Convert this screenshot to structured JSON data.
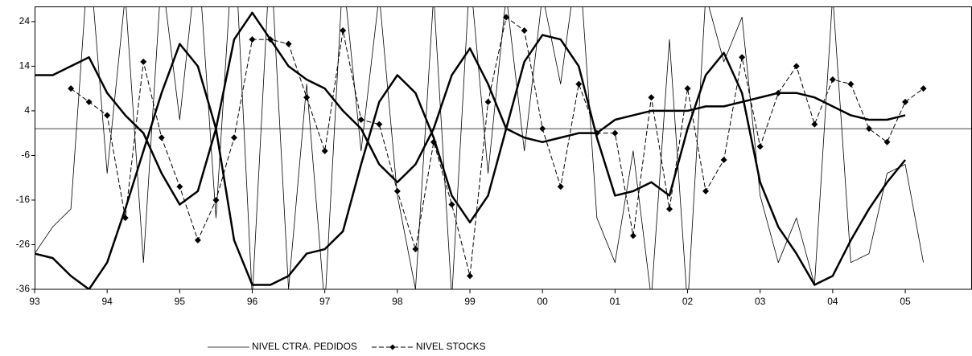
{
  "chart_data": {
    "type": "line",
    "xlim": [
      1993,
      2005.92
    ],
    "ylim": [
      -36,
      27.4
    ],
    "xticks": [
      {
        "value": 1993,
        "label": "93"
      },
      {
        "value": 1994,
        "label": "94"
      },
      {
        "value": 1995,
        "label": "95"
      },
      {
        "value": 1996,
        "label": "96"
      },
      {
        "value": 1997,
        "label": "97"
      },
      {
        "value": 1998,
        "label": "98"
      },
      {
        "value": 1999,
        "label": "99"
      },
      {
        "value": 2000,
        "label": "00"
      },
      {
        "value": 2001,
        "label": "01"
      },
      {
        "value": 2002,
        "label": "02"
      },
      {
        "value": 2003,
        "label": "03"
      },
      {
        "value": 2004,
        "label": "04"
      },
      {
        "value": 2005,
        "label": "05"
      }
    ],
    "yticks": [
      -36,
      -26,
      -16,
      -6,
      4,
      14,
      24
    ],
    "reference_line": 0,
    "legend": "bottom",
    "series": [
      {
        "name": "NIVEL CTRA. PEDIDOS",
        "color": "#000000",
        "width": 0.8,
        "marker": "none",
        "dashed": false,
        "x": [
          1993,
          1993.25,
          1993.5,
          1993.75,
          1994,
          1994.25,
          1994.5,
          1994.75,
          1995,
          1995.25,
          1995.5,
          1995.75,
          1996,
          1996.25,
          1996.5,
          1996.75,
          1997,
          1997.25,
          1997.5,
          1997.75,
          1998,
          1998.25,
          1998.5,
          1998.75,
          1999,
          1999.25,
          1999.5,
          1999.75,
          2000,
          2000.25,
          2000.5,
          2000.75,
          2001,
          2001.25,
          2001.5,
          2001.75,
          2002,
          2002.25,
          2002.5,
          2002.75,
          2003,
          2003.25,
          2003.5,
          2003.75,
          2004,
          2004.25,
          2004.5,
          2004.75,
          2005,
          2005.25
        ],
        "values": [
          -28,
          -22,
          -18,
          40,
          -10,
          30,
          -30,
          35,
          2,
          40,
          -20,
          45,
          -38,
          40,
          -36,
          10,
          -40,
          35,
          -5,
          30,
          -15,
          -36,
          30,
          -38,
          35,
          -10,
          30,
          -5,
          30,
          10,
          40,
          -20,
          -30,
          -5,
          -38,
          20,
          -40,
          30,
          15,
          25,
          -15,
          -30,
          -20,
          -35,
          30,
          -30,
          -28,
          -10,
          -8,
          -30
        ]
      },
      {
        "name": "NIVEL STOCKS",
        "color": "#000000",
        "width": 1,
        "marker": "diamond",
        "dashed": true,
        "x": [
          1993.5,
          1993.75,
          1994,
          1994.25,
          1994.5,
          1994.75,
          1995,
          1995.25,
          1995.5,
          1995.75,
          1996,
          1996.25,
          1996.5,
          1996.75,
          1997,
          1997.25,
          1997.5,
          1997.75,
          1998,
          1998.25,
          1998.5,
          1998.75,
          1999,
          1999.25,
          1999.5,
          1999.75,
          2000,
          2000.25,
          2000.5,
          2000.75,
          2001,
          2001.25,
          2001.5,
          2001.75,
          2002,
          2002.25,
          2002.5,
          2002.75,
          2003,
          2003.25,
          2003.5,
          2003.75,
          2004,
          2004.25,
          2004.5,
          2004.75,
          2005,
          2005.25
        ],
        "values": [
          9,
          6,
          3,
          -20,
          15,
          -2,
          -13,
          -25,
          -16,
          -2,
          20,
          20,
          19,
          7,
          -5,
          22,
          2,
          1,
          -14,
          -27,
          -3,
          -17,
          -33,
          6,
          25,
          22,
          0,
          -13,
          10,
          -1,
          -1,
          -24,
          7,
          -18,
          9,
          -14,
          -7,
          16,
          -4,
          8,
          14,
          1,
          11,
          10,
          0,
          -3,
          6,
          9
        ]
      },
      {
        "color": "#000000",
        "width": 2.5,
        "marker": "none",
        "dashed": false,
        "x": [
          1993,
          1993.25,
          1993.5,
          1993.75,
          1994,
          1994.25,
          1994.5,
          1994.75,
          1995,
          1995.25,
          1995.5,
          1995.75,
          1996,
          1996.25,
          1996.5,
          1996.75,
          1997,
          1997.25,
          1997.5,
          1997.75,
          1998,
          1998.25,
          1998.5,
          1998.75,
          1999,
          1999.25,
          1999.5,
          1999.75,
          2000,
          2000.25,
          2000.5,
          2000.75,
          2001,
          2001.25,
          2001.5,
          2001.75,
          2002,
          2002.25,
          2002.5,
          2002.75,
          2003,
          2003.25,
          2003.5,
          2003.75,
          2004,
          2004.25,
          2004.5,
          2004.75,
          2005
        ],
        "values": [
          -28,
          -29,
          -33,
          -36,
          -30,
          -18,
          -5,
          8,
          19,
          14,
          0,
          -25,
          -35,
          -35,
          -33,
          -28,
          -27,
          -23,
          -8,
          6,
          12,
          8,
          -2,
          -15,
          -21,
          -15,
          0,
          15,
          21,
          20,
          14,
          -2,
          -15,
          -14,
          -12,
          -15,
          0,
          12,
          17,
          8,
          -12,
          -22,
          -28,
          -35,
          -33,
          -25,
          -18,
          -12,
          -7
        ]
      },
      {
        "color": "#000000",
        "width": 2.5,
        "marker": "none",
        "dashed": false,
        "x": [
          1993,
          1993.25,
          1993.5,
          1993.75,
          1994,
          1994.25,
          1994.5,
          1994.75,
          1995,
          1995.25,
          1995.5,
          1995.75,
          1996,
          1996.25,
          1996.5,
          1996.75,
          1997,
          1997.25,
          1997.5,
          1997.75,
          1998,
          1998.25,
          1998.5,
          1998.75,
          1999,
          1999.25,
          1999.5,
          1999.75,
          2000,
          2000.25,
          2000.5,
          2000.75,
          2001,
          2001.25,
          2001.5,
          2001.75,
          2002,
          2002.25,
          2002.5,
          2002.75,
          2003,
          2003.25,
          2003.5,
          2003.75,
          2004,
          2004.25,
          2004.5,
          2004.75,
          2005
        ],
        "values": [
          12,
          12,
          14,
          16,
          8,
          3,
          -1,
          -10,
          -17,
          -14,
          0,
          20,
          26,
          20,
          14,
          11,
          9,
          4,
          0,
          -8,
          -12,
          -8,
          0,
          12,
          18,
          10,
          0,
          -2,
          -3,
          -2,
          -1,
          -1,
          2,
          3,
          4,
          4,
          4,
          5,
          5,
          6,
          7,
          8,
          8,
          7,
          5,
          3,
          2,
          2,
          3
        ]
      }
    ]
  }
}
